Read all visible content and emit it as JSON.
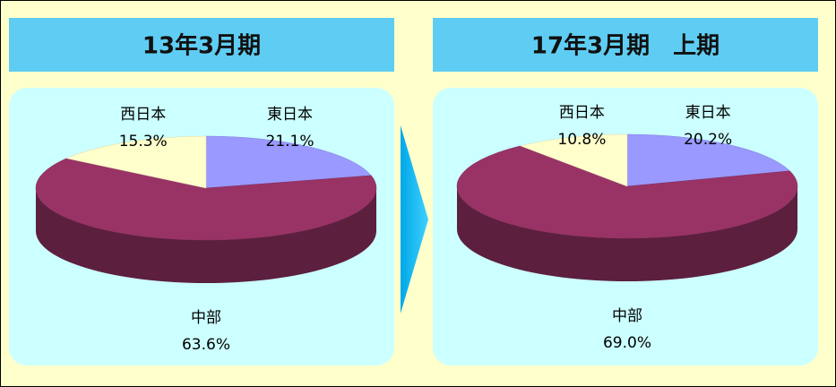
{
  "chart_data": [
    {
      "type": "pie",
      "title": "13年3月期",
      "categories": [
        "東日本",
        "中部",
        "西日本"
      ],
      "values": [
        21.1,
        63.6,
        15.3
      ],
      "value_labels": [
        "21.1%",
        "63.6%",
        "15.3%"
      ],
      "colors": [
        "#9999ff",
        "#993366",
        "#ffffcc"
      ]
    },
    {
      "type": "pie",
      "title": "17年3月期　上期",
      "categories": [
        "東日本",
        "中部",
        "西日本"
      ],
      "values": [
        20.2,
        69.0,
        10.8
      ],
      "value_labels": [
        "20.2%",
        "69.0%",
        "10.8%"
      ],
      "colors": [
        "#9999ff",
        "#993366",
        "#ffffcc"
      ]
    }
  ]
}
